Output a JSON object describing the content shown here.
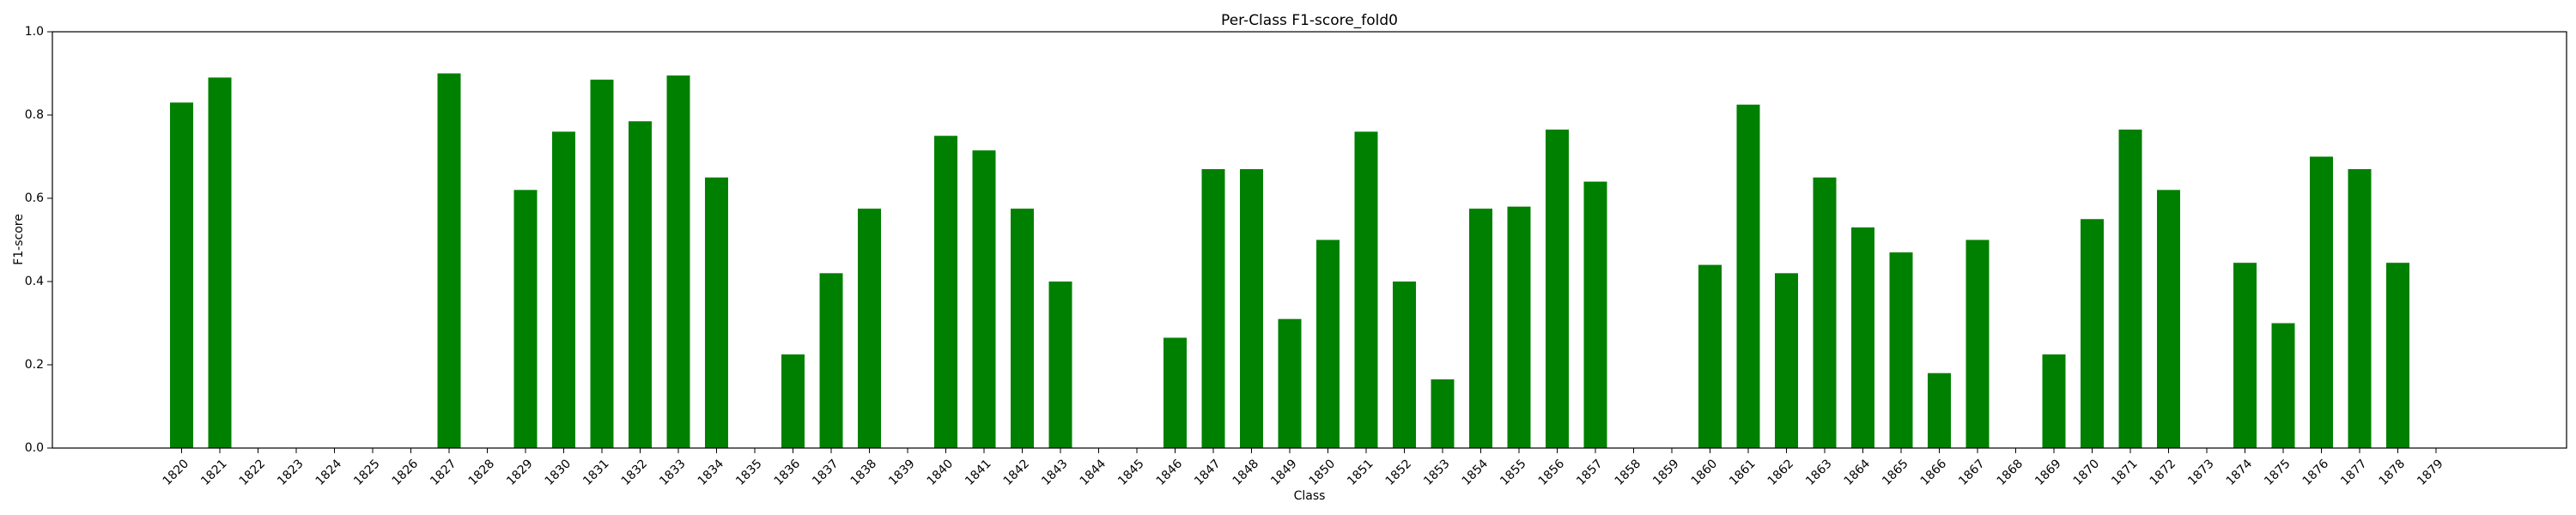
{
  "chart_data": {
    "type": "bar",
    "title": "Per-Class F1-score_fold0",
    "xlabel": "Class",
    "ylabel": "F1-score",
    "ylim": [
      0.0,
      1.0
    ],
    "yticks": [
      "0.0",
      "0.2",
      "0.4",
      "0.6",
      "0.8",
      "1.0"
    ],
    "grid": false,
    "bar_color": "#008000",
    "categories": [
      "1820",
      "1821",
      "1822",
      "1823",
      "1824",
      "1825",
      "1826",
      "1827",
      "1828",
      "1829",
      "1830",
      "1831",
      "1832",
      "1833",
      "1834",
      "1835",
      "1836",
      "1837",
      "1838",
      "1839",
      "1840",
      "1841",
      "1842",
      "1843",
      "1844",
      "1845",
      "1846",
      "1847",
      "1848",
      "1849",
      "1850",
      "1851",
      "1852",
      "1853",
      "1854",
      "1855",
      "1856",
      "1857",
      "1858",
      "1859",
      "1860",
      "1861",
      "1862",
      "1863",
      "1864",
      "1865",
      "1866",
      "1867",
      "1868",
      "1869",
      "1870",
      "1871",
      "1872",
      "1873",
      "1874",
      "1875",
      "1876",
      "1877",
      "1878",
      "1879"
    ],
    "values": [
      0.83,
      0.89,
      0,
      0,
      0,
      0,
      0,
      0.9,
      0,
      0.62,
      0.76,
      0.885,
      0.785,
      0.895,
      0.65,
      0,
      0.225,
      0.42,
      0.575,
      0,
      0.75,
      0.715,
      0.575,
      0.4,
      0,
      0,
      0.265,
      0.67,
      0.67,
      0.31,
      0.5,
      0.76,
      0.4,
      0.165,
      0.575,
      0.58,
      0.765,
      0.64,
      0,
      0,
      0.44,
      0.825,
      0.42,
      0.65,
      0.53,
      0.47,
      0.18,
      0.5,
      0,
      0.225,
      0.55,
      0.765,
      0.62,
      0,
      0.445,
      0.3,
      0.7,
      0.67,
      0.445,
      0
    ]
  }
}
